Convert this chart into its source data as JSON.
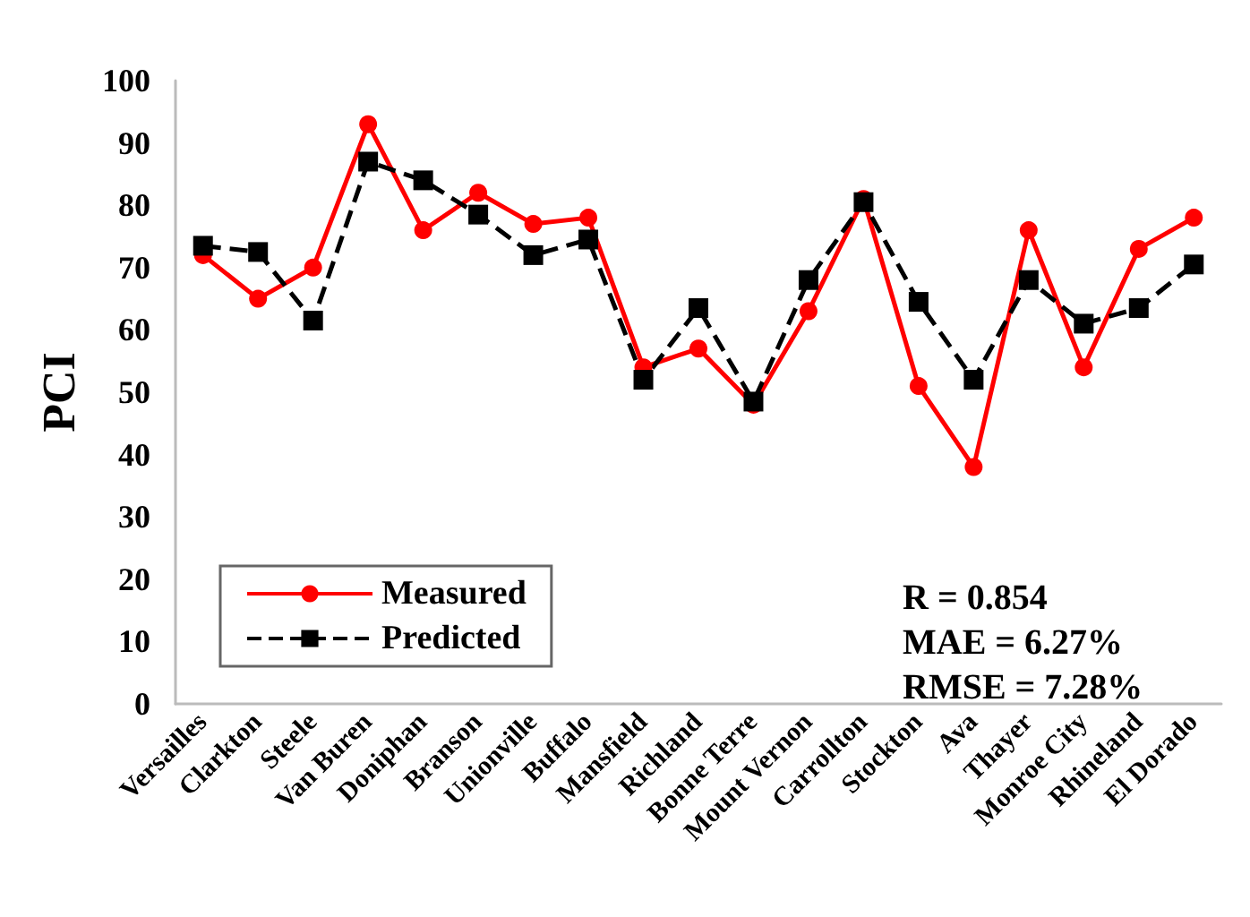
{
  "chart_data": {
    "type": "line",
    "ylabel": "PCI",
    "categories": [
      "Versailles",
      "Clarkton",
      "Steele",
      "Van Buren",
      "Doniphan",
      "Branson",
      "Unionville",
      "Buffalo",
      "Mansfield",
      "Richland",
      "Bonne Terre",
      "Mount Vernon",
      "Carrollton",
      "Stockton",
      "Ava",
      "Thayer",
      "Monroe City",
      "Rhineland",
      "El Dorado"
    ],
    "series": [
      {
        "name": "Measured",
        "color": "#ff0000",
        "marker": "circle",
        "line_style": "solid",
        "values": [
          72,
          65,
          70,
          93,
          76,
          82,
          77,
          78,
          54,
          57,
          48,
          63,
          81,
          51,
          38,
          76,
          54,
          73,
          78
        ]
      },
      {
        "name": "Predicted",
        "color": "#000000",
        "marker": "square",
        "line_style": "dashed",
        "values": [
          73.5,
          72.5,
          61.5,
          87,
          84,
          78.5,
          72,
          74.5,
          52,
          63.5,
          48.5,
          68,
          80.5,
          64.5,
          52,
          68,
          61,
          63.5,
          70.5
        ]
      }
    ],
    "ylim": [
      0,
      100
    ],
    "yticks": [
      0,
      10,
      20,
      30,
      40,
      50,
      60,
      70,
      80,
      90,
      100
    ],
    "grid": false,
    "legend": "bottom left",
    "annotations": [
      "R = 0.854",
      "MAE = 6.27%",
      "RMSE = 7.28%"
    ]
  }
}
